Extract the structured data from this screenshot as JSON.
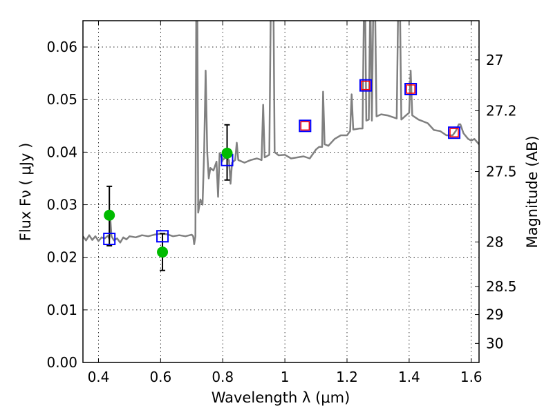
{
  "chart_data": {
    "type": "line",
    "title": "",
    "xlabel": "Wavelength  λ (μm)",
    "ylabel": "Flux  Fν  ( μJy )",
    "ylabel_right": "Magnitude (AB)",
    "xlim": [
      0.35,
      1.625
    ],
    "ylim": [
      0.0,
      0.065
    ],
    "grid": true,
    "x_ticks": [
      0.4,
      0.6,
      0.8,
      1.0,
      1.2,
      1.4,
      1.6
    ],
    "x_tick_labels": [
      "0.4",
      "0.6",
      "0.8",
      "1",
      "1.2",
      "1.4",
      "1.6"
    ],
    "y_ticks": [
      0.0,
      0.01,
      0.02,
      0.03,
      0.04,
      0.05,
      0.06
    ],
    "y_tick_labels": [
      "0.00",
      "0.01",
      "0.02",
      "0.03",
      "0.04",
      "0.05",
      "0.06"
    ],
    "right_ticks": [
      27,
      27.2,
      27.5,
      28,
      28.5,
      29,
      30
    ],
    "right_tick_labels": [
      "27",
      "27.2",
      "27.5",
      "28",
      "28.5",
      "29",
      "30"
    ],
    "colors": {
      "spectrum": "#808080",
      "observed": "#00bb00",
      "model_blue": "#0000ff",
      "model_red": "#ff0000",
      "errorbar": "#000000"
    },
    "series": [
      {
        "name": "spectrum",
        "type": "line",
        "points": [
          [
            0.35,
            0.024
          ],
          [
            0.36,
            0.0232
          ],
          [
            0.37,
            0.0242
          ],
          [
            0.38,
            0.0233
          ],
          [
            0.39,
            0.024
          ],
          [
            0.4,
            0.0231
          ],
          [
            0.41,
            0.0238
          ],
          [
            0.42,
            0.0236
          ],
          [
            0.43,
            0.0241
          ],
          [
            0.435,
            0.0235
          ],
          [
            0.438,
            0.0275
          ],
          [
            0.442,
            0.024
          ],
          [
            0.45,
            0.0232
          ],
          [
            0.46,
            0.0236
          ],
          [
            0.47,
            0.0228
          ],
          [
            0.48,
            0.0238
          ],
          [
            0.49,
            0.0234
          ],
          [
            0.5,
            0.024
          ],
          [
            0.52,
            0.0238
          ],
          [
            0.54,
            0.0242
          ],
          [
            0.56,
            0.024
          ],
          [
            0.58,
            0.0243
          ],
          [
            0.6,
            0.0245
          ],
          [
            0.62,
            0.0244
          ],
          [
            0.64,
            0.024
          ],
          [
            0.66,
            0.0242
          ],
          [
            0.68,
            0.024
          ],
          [
            0.7,
            0.0243
          ],
          [
            0.705,
            0.024
          ],
          [
            0.708,
            0.0225
          ],
          [
            0.712,
            0.024
          ],
          [
            0.715,
            0.07
          ],
          [
            0.718,
            0.07
          ],
          [
            0.721,
            0.0285
          ],
          [
            0.728,
            0.031
          ],
          [
            0.735,
            0.03
          ],
          [
            0.74,
            0.04
          ],
          [
            0.745,
            0.0555
          ],
          [
            0.75,
            0.04
          ],
          [
            0.755,
            0.035
          ],
          [
            0.76,
            0.037
          ],
          [
            0.77,
            0.0365
          ],
          [
            0.78,
            0.0382
          ],
          [
            0.785,
            0.0315
          ],
          [
            0.79,
            0.0398
          ],
          [
            0.8,
            0.0385
          ],
          [
            0.81,
            0.039
          ],
          [
            0.82,
            0.0385
          ],
          [
            0.825,
            0.034
          ],
          [
            0.83,
            0.038
          ],
          [
            0.84,
            0.0385
          ],
          [
            0.845,
            0.0418
          ],
          [
            0.85,
            0.0385
          ],
          [
            0.87,
            0.038
          ],
          [
            0.89,
            0.0385
          ],
          [
            0.91,
            0.0388
          ],
          [
            0.925,
            0.0385
          ],
          [
            0.93,
            0.049
          ],
          [
            0.935,
            0.039
          ],
          [
            0.95,
            0.0395
          ],
          [
            0.955,
            0.07
          ],
          [
            0.96,
            0.07
          ],
          [
            0.963,
            0.07
          ],
          [
            0.967,
            0.04
          ],
          [
            0.98,
            0.0394
          ],
          [
            1.0,
            0.0395
          ],
          [
            1.02,
            0.0388
          ],
          [
            1.04,
            0.039
          ],
          [
            1.06,
            0.0392
          ],
          [
            1.08,
            0.0388
          ],
          [
            1.1,
            0.0405
          ],
          [
            1.11,
            0.041
          ],
          [
            1.12,
            0.041
          ],
          [
            1.123,
            0.0515
          ],
          [
            1.128,
            0.0415
          ],
          [
            1.14,
            0.0412
          ],
          [
            1.16,
            0.0425
          ],
          [
            1.18,
            0.0432
          ],
          [
            1.2,
            0.0432
          ],
          [
            1.21,
            0.044
          ],
          [
            1.215,
            0.051
          ],
          [
            1.22,
            0.0443
          ],
          [
            1.24,
            0.0445
          ],
          [
            1.25,
            0.0445
          ],
          [
            1.255,
            0.07
          ],
          [
            1.258,
            0.07
          ],
          [
            1.262,
            0.046
          ],
          [
            1.27,
            0.0462
          ],
          [
            1.275,
            0.07
          ],
          [
            1.28,
            0.046
          ],
          [
            1.285,
            0.07
          ],
          [
            1.29,
            0.07
          ],
          [
            1.295,
            0.0468
          ],
          [
            1.31,
            0.0472
          ],
          [
            1.33,
            0.047
          ],
          [
            1.35,
            0.0466
          ],
          [
            1.36,
            0.0464
          ],
          [
            1.365,
            0.07
          ],
          [
            1.37,
            0.07
          ],
          [
            1.375,
            0.0462
          ],
          [
            1.39,
            0.047
          ],
          [
            1.4,
            0.0475
          ],
          [
            1.405,
            0.0555
          ],
          [
            1.41,
            0.047
          ],
          [
            1.43,
            0.0462
          ],
          [
            1.46,
            0.0455
          ],
          [
            1.48,
            0.0442
          ],
          [
            1.5,
            0.044
          ],
          [
            1.52,
            0.0432
          ],
          [
            1.54,
            0.0432
          ],
          [
            1.55,
            0.044
          ],
          [
            1.56,
            0.0453
          ],
          [
            1.565,
            0.0453
          ],
          [
            1.575,
            0.0436
          ],
          [
            1.59,
            0.0425
          ],
          [
            1.6,
            0.0422
          ],
          [
            1.61,
            0.0425
          ],
          [
            1.625,
            0.0415
          ]
        ]
      },
      {
        "name": "observed",
        "type": "scatter",
        "x": [
          0.435,
          0.606,
          0.814
        ],
        "y": [
          0.028,
          0.021,
          0.0398
        ],
        "yerr_low": [
          0.0222,
          0.0175,
          0.0347
        ],
        "yerr_high": [
          0.0335,
          0.0245,
          0.0452
        ]
      },
      {
        "name": "model_blue",
        "type": "scatter",
        "x": [
          0.435,
          0.606,
          0.814,
          1.065,
          1.26,
          1.405,
          1.545
        ],
        "y": [
          0.0235,
          0.024,
          0.0385,
          0.045,
          0.0527,
          0.052,
          0.0437
        ]
      },
      {
        "name": "model_red",
        "type": "scatter",
        "x": [
          1.065,
          1.26,
          1.405,
          1.545
        ],
        "y": [
          0.045,
          0.0527,
          0.052,
          0.0437
        ]
      }
    ]
  }
}
